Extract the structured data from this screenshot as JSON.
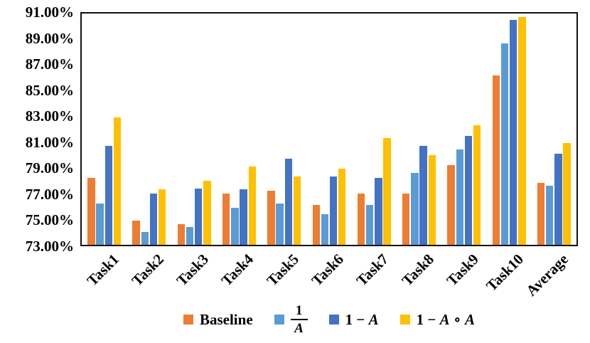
{
  "chart_data": {
    "type": "bar",
    "title": "",
    "xlabel": "",
    "ylabel": "",
    "categories": [
      "Task1",
      "Task2",
      "Task3",
      "Task4",
      "Task5",
      "Task6",
      "Task7",
      "Task8",
      "Task9",
      "Task10",
      "Average"
    ],
    "series": [
      {
        "name": "Baseline",
        "color": "#ED7D31",
        "values": [
          78.2,
          74.9,
          74.6,
          77.0,
          77.2,
          76.1,
          77.0,
          77.0,
          79.2,
          86.2,
          77.8
        ]
      },
      {
        "name": "1/A",
        "color": "#5B9BD5",
        "values": [
          76.2,
          74.0,
          74.4,
          75.9,
          76.2,
          75.4,
          76.1,
          78.6,
          80.4,
          88.7,
          77.6
        ]
      },
      {
        "name": "1 − A",
        "color": "#4472C4",
        "values": [
          80.7,
          77.0,
          77.4,
          77.3,
          79.7,
          78.3,
          78.2,
          80.7,
          81.5,
          90.5,
          80.1
        ]
      },
      {
        "name": "1 − A ∘ A",
        "color": "#FFC000",
        "values": [
          82.9,
          77.3,
          78.0,
          79.1,
          78.3,
          78.9,
          81.3,
          80.0,
          82.3,
          90.7,
          80.9
        ]
      }
    ],
    "ylim": [
      73,
      91
    ],
    "ytick_step": 2,
    "ytick_labels": [
      "91.00%",
      "89.00%",
      "87.00%",
      "85.00%",
      "83.00%",
      "81.00%",
      "79.00%",
      "77.00%",
      "75.00%",
      "73.00%"
    ],
    "grid": false,
    "legend_position": "bottom"
  },
  "legend": {
    "items": [
      {
        "kind": "text",
        "label": "Baseline",
        "color": "#ED7D31"
      },
      {
        "kind": "fraction",
        "numerator": "1",
        "denominator": "A",
        "color": "#5B9BD5"
      },
      {
        "kind": "math",
        "label": "1 − A",
        "color": "#4472C4"
      },
      {
        "kind": "math",
        "label": "1 − A ∘ A",
        "color": "#FFC000"
      }
    ]
  }
}
